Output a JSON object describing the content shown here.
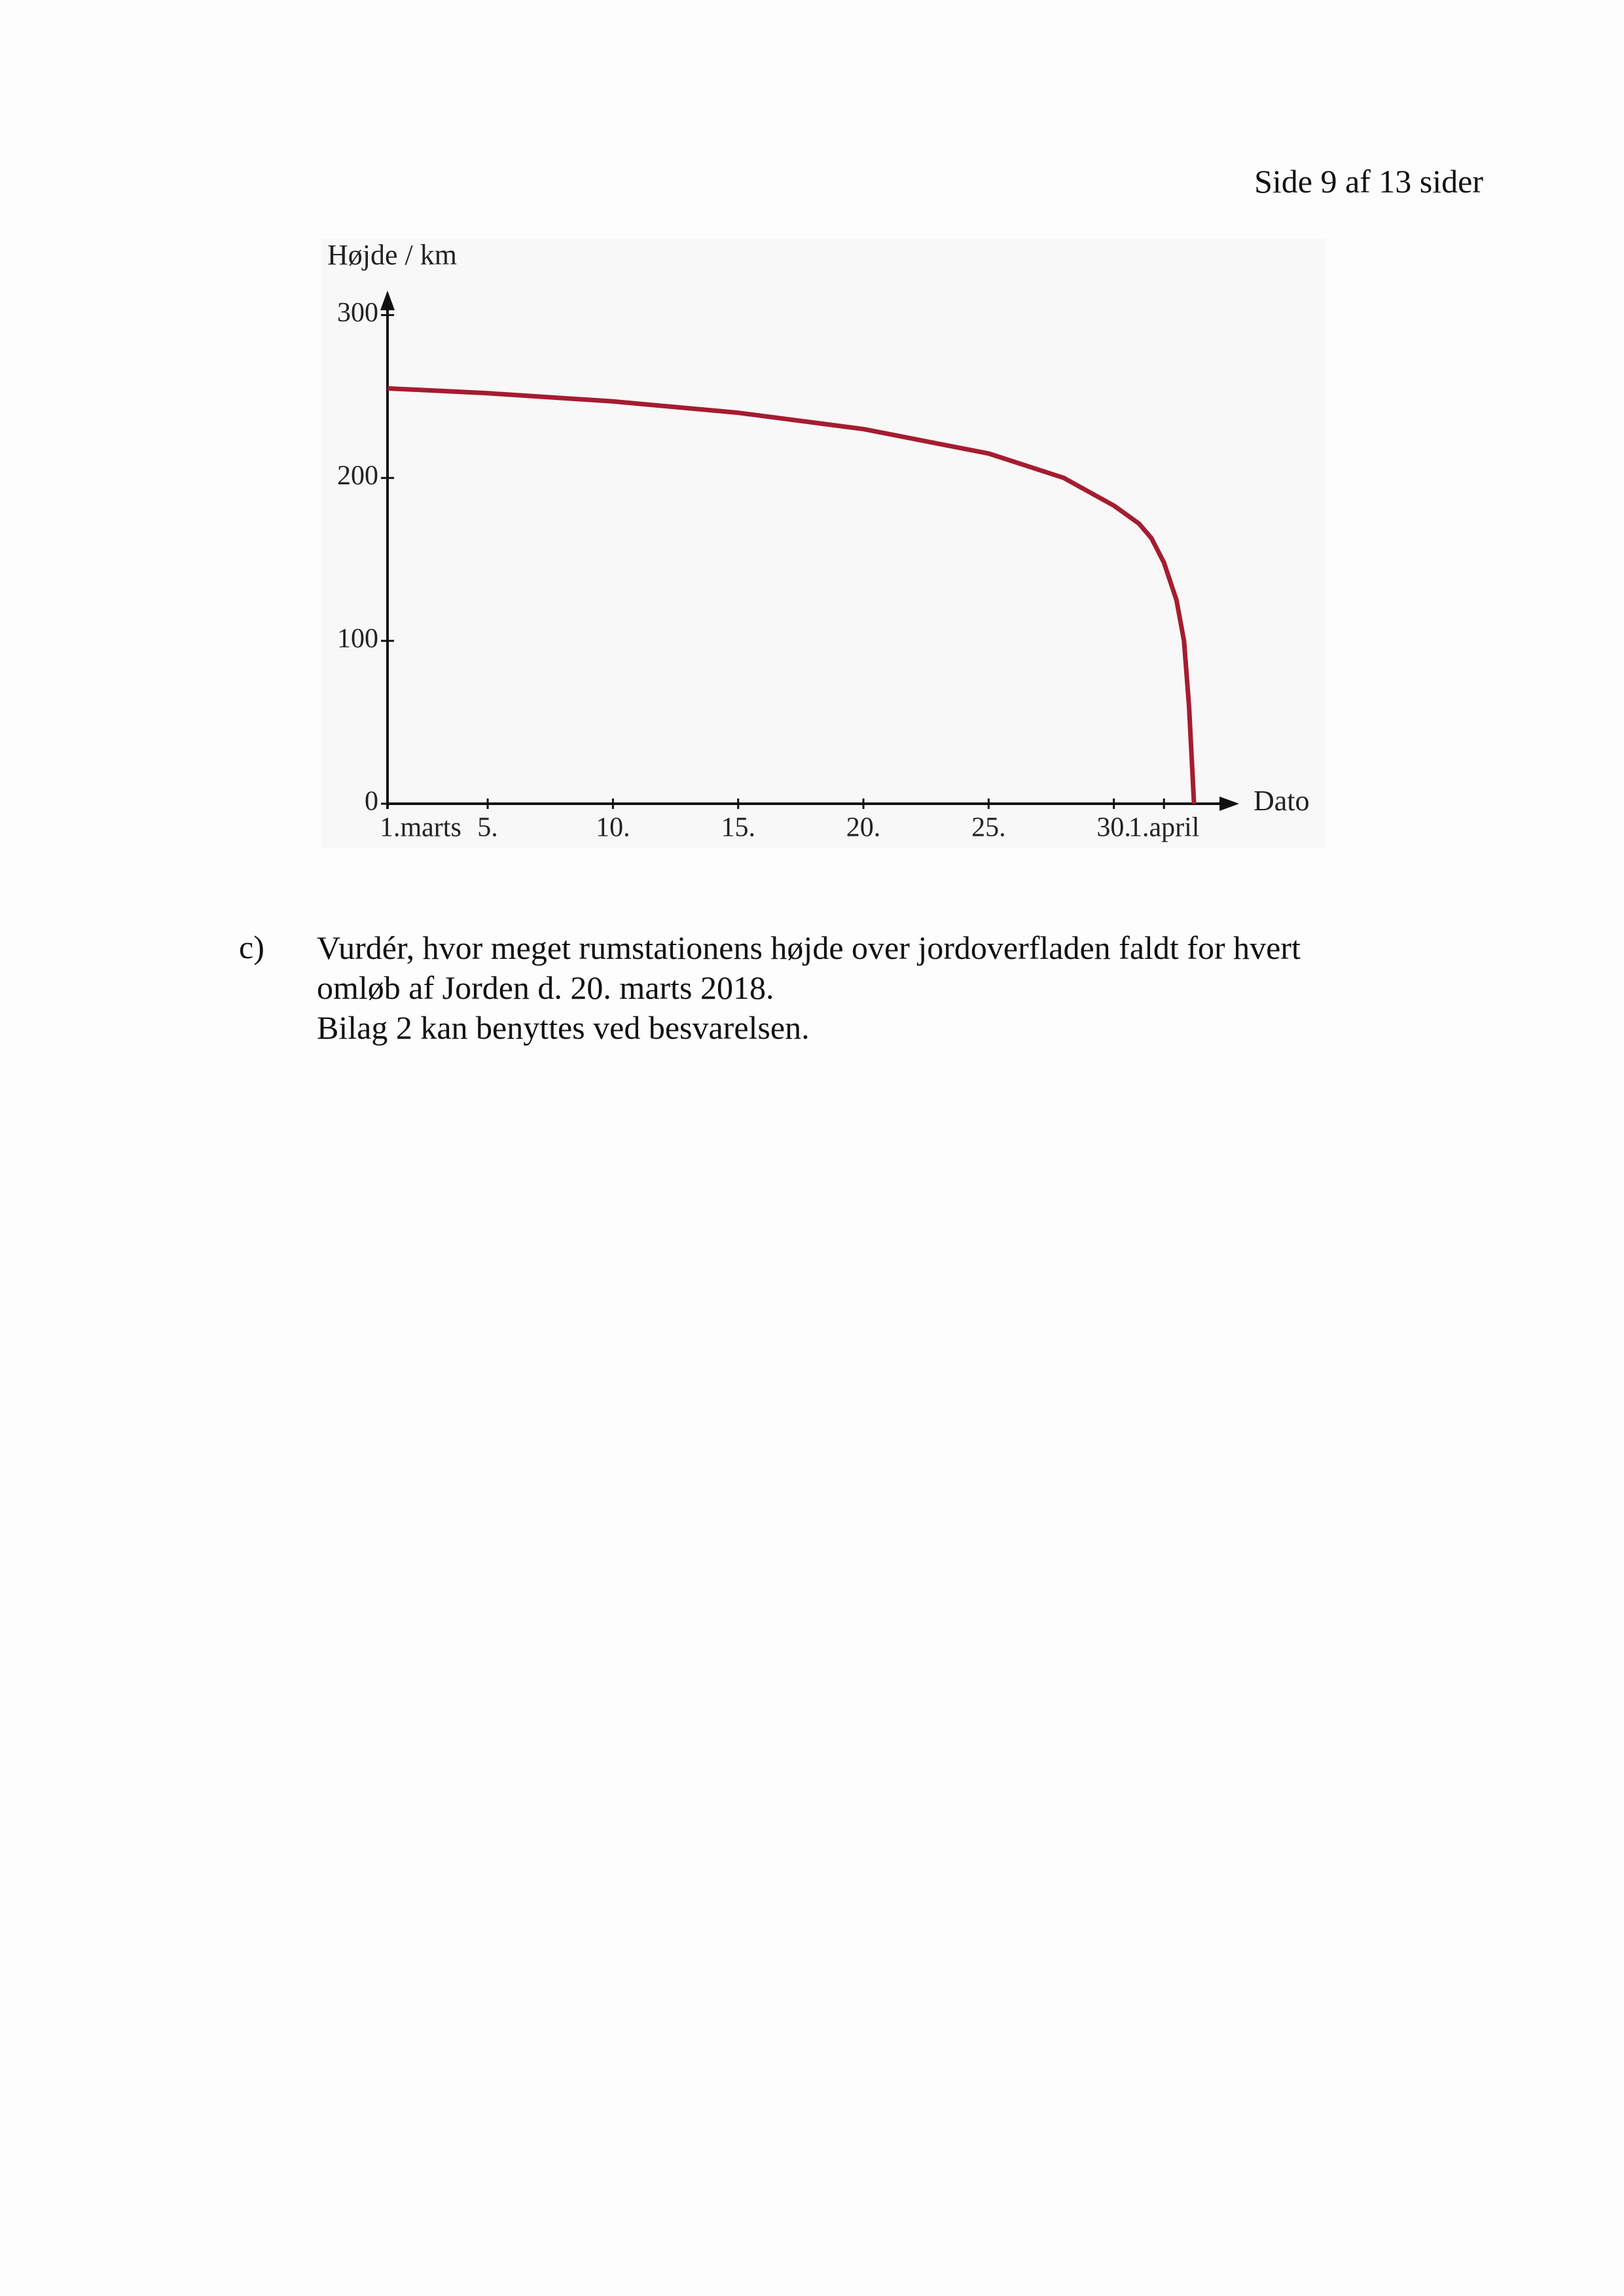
{
  "header": {
    "page": "Side 9 af 13 sider"
  },
  "chart_data": {
    "type": "line",
    "ylabel": "Højde / km",
    "xlabel": "Dato",
    "x": [
      1,
      5,
      10,
      15,
      20,
      25,
      28,
      30,
      31,
      31.5,
      32,
      32.5,
      32.8,
      33,
      33.2
    ],
    "series": [
      {
        "name": "Højde",
        "color": "#a51c30",
        "values": [
          255,
          252,
          247,
          240,
          230,
          215,
          200,
          183,
          172,
          163,
          148,
          125,
          100,
          60,
          0
        ]
      }
    ],
    "xlim": [
      1,
      35
    ],
    "ylim": [
      0,
      315
    ],
    "xticks": [
      {
        "value": 1,
        "label": "1.marts"
      },
      {
        "value": 5,
        "label": "5."
      },
      {
        "value": 10,
        "label": "10."
      },
      {
        "value": 15,
        "label": "15."
      },
      {
        "value": 20,
        "label": "20."
      },
      {
        "value": 25,
        "label": "25."
      },
      {
        "value": 30,
        "label": "30."
      },
      {
        "value": 32,
        "label": "1.april"
      }
    ],
    "yticks": [
      0,
      100,
      200,
      300
    ]
  },
  "question": {
    "label": "c)",
    "lines": [
      "Vurdér, hvor meget rumstationens højde over jordoverfladen faldt for hvert",
      "omløb af Jorden d. 20. marts 2018.",
      "Bilag 2 kan benyttes ved besvarelsen."
    ]
  }
}
